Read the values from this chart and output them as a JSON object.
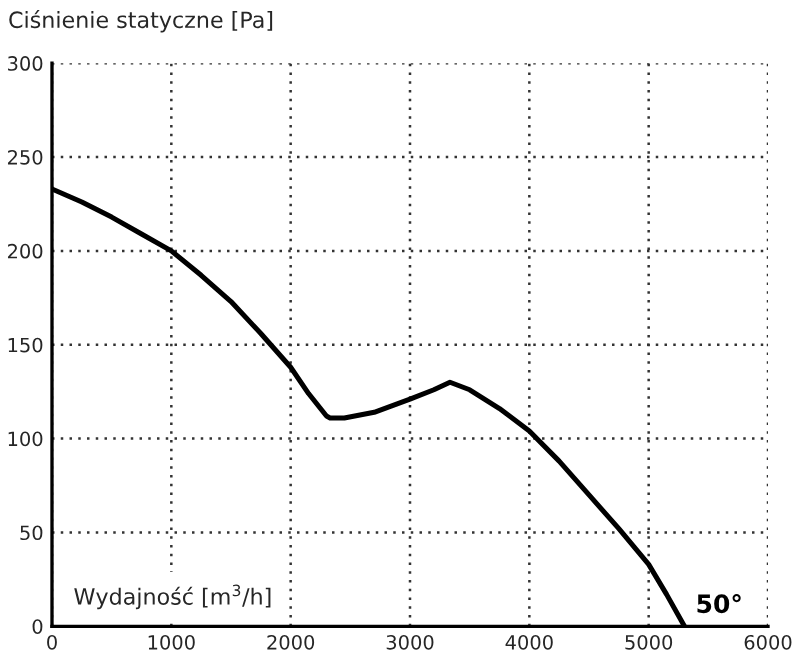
{
  "chart_data": {
    "type": "line",
    "xlabel": "Wydajność [m$^{3}$/h]",
    "ylabel": "Ciśnienie statyczne [Pa]",
    "series": [
      {
        "name": "50°",
        "color": "#000000",
        "x": [
          0,
          250,
          500,
          750,
          1000,
          1250,
          1500,
          1750,
          2000,
          2150,
          2300,
          2330,
          2450,
          2700,
          3000,
          3200,
          3335,
          3500,
          3750,
          4000,
          4250,
          4500,
          4750,
          5000,
          5150,
          5300
        ],
        "values": [
          233,
          226,
          218,
          209,
          200,
          187,
          173,
          156,
          138,
          124,
          112,
          111,
          111,
          114,
          121,
          126,
          130,
          126,
          116,
          104,
          88,
          70,
          52,
          33,
          17,
          0
        ]
      }
    ],
    "xlim": [
      0,
      6000
    ],
    "ylim": [
      0,
      300
    ],
    "xticks": [
      0,
      1000,
      2000,
      3000,
      4000,
      5000,
      6000
    ],
    "yticks": [
      0,
      50,
      100,
      150,
      200,
      250,
      300
    ],
    "grid": true,
    "line_style": "solid",
    "marker": "none"
  }
}
